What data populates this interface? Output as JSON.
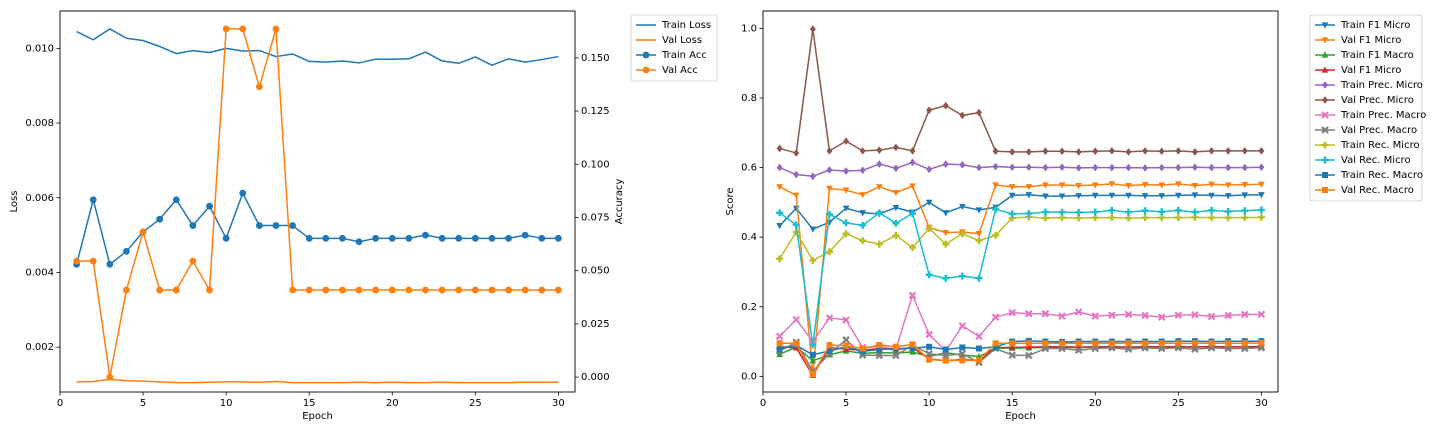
{
  "chart_data": [
    {
      "type": "line",
      "title": "",
      "xlabel": "Epoch",
      "ylabel": "Loss",
      "ylabel_right": "Accuracy",
      "xlim": [
        0,
        31
      ],
      "ylim": [
        0.0008,
        0.011
      ],
      "ylim_right": [
        -0.007,
        0.172
      ],
      "xticks": [
        0,
        5,
        10,
        15,
        20,
        25,
        30
      ],
      "xtick_labels": [
        "0",
        "5",
        "10",
        "15",
        "20",
        "25",
        "30"
      ],
      "yticks": [
        0.002,
        0.004,
        0.006,
        0.008,
        0.01
      ],
      "ytick_labels": [
        "0.002",
        "0.004",
        "0.006",
        "0.008",
        "0.010"
      ],
      "yticks_right": [
        0.0,
        0.025,
        0.05,
        0.075,
        0.1,
        0.125,
        0.15
      ],
      "ytick_labels_right": [
        "0.000",
        "0.025",
        "0.050",
        "0.075",
        "0.100",
        "0.125",
        "0.150"
      ],
      "grid": false,
      "legend_position": "outside-top-right",
      "x": [
        1,
        2,
        3,
        4,
        5,
        6,
        7,
        8,
        9,
        10,
        11,
        12,
        13,
        14,
        15,
        16,
        17,
        18,
        19,
        20,
        21,
        22,
        23,
        24,
        25,
        26,
        27,
        28,
        29,
        30
      ],
      "series": [
        {
          "name": "Train Loss",
          "axis": "left",
          "color": "#1f77b4",
          "marker": "none",
          "values": [
            0.01045,
            0.01023,
            0.01052,
            0.01027,
            0.01021,
            0.01005,
            0.00986,
            0.00994,
            0.00989,
            0.01,
            0.00993,
            0.00994,
            0.00978,
            0.00985,
            0.00965,
            0.00963,
            0.00966,
            0.00961,
            0.00971,
            0.00971,
            0.00972,
            0.0099,
            0.00966,
            0.0096,
            0.00977,
            0.00955,
            0.00972,
            0.00963,
            0.0097,
            0.00978
          ]
        },
        {
          "name": "Val Loss",
          "axis": "left",
          "color": "#ff7f0e",
          "marker": "none",
          "values": [
            0.00107,
            0.00108,
            0.00114,
            0.0011,
            0.00109,
            0.00107,
            0.00105,
            0.00105,
            0.00106,
            0.00107,
            0.00107,
            0.00106,
            0.00108,
            0.00105,
            0.00105,
            0.00105,
            0.00105,
            0.00106,
            0.00105,
            0.00106,
            0.00105,
            0.00105,
            0.00106,
            0.00105,
            0.00105,
            0.00105,
            0.00105,
            0.00106,
            0.00106,
            0.00106
          ]
        },
        {
          "name": "Train Acc",
          "axis": "right",
          "color": "#1f77b4",
          "marker": "circle",
          "values": [
            0.053,
            0.0833,
            0.053,
            0.0591,
            0.0682,
            0.0742,
            0.0833,
            0.0712,
            0.0803,
            0.0652,
            0.0864,
            0.0712,
            0.0712,
            0.0712,
            0.0652,
            0.0652,
            0.0652,
            0.0636,
            0.0652,
            0.0652,
            0.0652,
            0.0667,
            0.0652,
            0.0652,
            0.0652,
            0.0652,
            0.0652,
            0.0667,
            0.0652,
            0.0652
          ]
        },
        {
          "name": "Val Acc",
          "axis": "right",
          "color": "#ff7f0e",
          "marker": "circle",
          "values": [
            0.0545,
            0.0545,
            0.0,
            0.0409,
            0.0682,
            0.0409,
            0.0409,
            0.0545,
            0.0409,
            0.1636,
            0.1636,
            0.1364,
            0.1636,
            0.0409,
            0.0409,
            0.0409,
            0.0409,
            0.0409,
            0.0409,
            0.0409,
            0.0409,
            0.0409,
            0.0409,
            0.0409,
            0.0409,
            0.0409,
            0.0409,
            0.0409,
            0.0409,
            0.0409
          ]
        }
      ]
    },
    {
      "type": "line",
      "title": "",
      "xlabel": "Epoch",
      "ylabel": "Score",
      "xlim": [
        0,
        31
      ],
      "ylim": [
        -0.045,
        1.05
      ],
      "xticks": [
        0,
        5,
        10,
        15,
        20,
        25,
        30
      ],
      "xtick_labels": [
        "0",
        "5",
        "10",
        "15",
        "20",
        "25",
        "30"
      ],
      "yticks": [
        0.0,
        0.2,
        0.4,
        0.6,
        0.8,
        1.0
      ],
      "ytick_labels": [
        "0.0",
        "0.2",
        "0.4",
        "0.6",
        "0.8",
        "1.0"
      ],
      "grid": false,
      "legend_position": "outside-top-right",
      "x": [
        1,
        2,
        3,
        4,
        5,
        6,
        7,
        8,
        9,
        10,
        11,
        12,
        13,
        14,
        15,
        16,
        17,
        18,
        19,
        20,
        21,
        22,
        23,
        24,
        25,
        26,
        27,
        28,
        29,
        30
      ],
      "series": [
        {
          "name": "Train F1 Micro",
          "color": "#1f77b4",
          "marker": "tri-down",
          "values": [
            0.433,
            0.483,
            0.423,
            0.443,
            0.483,
            0.47,
            0.467,
            0.485,
            0.472,
            0.5,
            0.47,
            0.488,
            0.478,
            0.486,
            0.52,
            0.522,
            0.518,
            0.518,
            0.519,
            0.52,
            0.52,
            0.52,
            0.519,
            0.519,
            0.52,
            0.521,
            0.52,
            0.519,
            0.521,
            0.522
          ]
        },
        {
          "name": "Val F1 Micro",
          "color": "#ff7f0e",
          "marker": "tri-down",
          "values": [
            0.545,
            0.52,
            0.005,
            0.54,
            0.535,
            0.522,
            0.545,
            0.528,
            0.547,
            0.428,
            0.413,
            0.415,
            0.41,
            0.55,
            0.545,
            0.545,
            0.55,
            0.55,
            0.548,
            0.55,
            0.553,
            0.548,
            0.551,
            0.55,
            0.553,
            0.548,
            0.552,
            0.55,
            0.551,
            0.552
          ]
        },
        {
          "name": "Train F1 Macro",
          "color": "#2ca02c",
          "marker": "tri-up",
          "values": [
            0.063,
            0.085,
            0.045,
            0.062,
            0.073,
            0.066,
            0.068,
            0.067,
            0.07,
            0.057,
            0.068,
            0.061,
            0.057,
            0.081,
            0.081,
            0.082,
            0.083,
            0.083,
            0.083,
            0.084,
            0.084,
            0.084,
            0.084,
            0.085,
            0.085,
            0.085,
            0.085,
            0.085,
            0.085,
            0.086
          ]
        },
        {
          "name": "Val F1 Micro",
          "color": "#d62728",
          "marker": "tri-up",
          "values": [
            0.085,
            0.082,
            0.003,
            0.083,
            0.078,
            0.075,
            0.08,
            0.077,
            0.083,
            0.05,
            0.045,
            0.048,
            0.046,
            0.083,
            0.083,
            0.084,
            0.085,
            0.085,
            0.084,
            0.085,
            0.085,
            0.084,
            0.085,
            0.085,
            0.085,
            0.084,
            0.085,
            0.085,
            0.085,
            0.085
          ]
        },
        {
          "name": "Train Prec. Micro",
          "color": "#9467bd",
          "marker": "diamond",
          "values": [
            0.6,
            0.58,
            0.575,
            0.593,
            0.59,
            0.592,
            0.61,
            0.598,
            0.615,
            0.595,
            0.61,
            0.608,
            0.6,
            0.603,
            0.601,
            0.601,
            0.6,
            0.601,
            0.599,
            0.6,
            0.6,
            0.6,
            0.599,
            0.6,
            0.6,
            0.601,
            0.6,
            0.6,
            0.6,
            0.601
          ]
        },
        {
          "name": "Val Prec. Micro",
          "color": "#8c564b",
          "marker": "diamond",
          "values": [
            0.655,
            0.642,
            0.998,
            0.648,
            0.676,
            0.648,
            0.65,
            0.658,
            0.648,
            0.765,
            0.778,
            0.75,
            0.758,
            0.647,
            0.645,
            0.645,
            0.647,
            0.647,
            0.645,
            0.647,
            0.648,
            0.645,
            0.648,
            0.647,
            0.648,
            0.645,
            0.648,
            0.648,
            0.648,
            0.648
          ]
        },
        {
          "name": "Train Prec. Macro",
          "color": "#e377c2",
          "marker": "x",
          "values": [
            0.115,
            0.163,
            0.1,
            0.168,
            0.162,
            0.083,
            0.086,
            0.078,
            0.233,
            0.12,
            0.073,
            0.145,
            0.115,
            0.17,
            0.183,
            0.18,
            0.18,
            0.173,
            0.185,
            0.173,
            0.176,
            0.178,
            0.175,
            0.17,
            0.176,
            0.177,
            0.172,
            0.175,
            0.178,
            0.178
          ]
        },
        {
          "name": "Val Prec. Macro",
          "color": "#7f7f7f",
          "marker": "x",
          "values": [
            0.073,
            0.098,
            0.015,
            0.065,
            0.105,
            0.061,
            0.06,
            0.06,
            0.09,
            0.065,
            0.06,
            0.065,
            0.04,
            0.08,
            0.061,
            0.06,
            0.08,
            0.08,
            0.075,
            0.08,
            0.082,
            0.078,
            0.082,
            0.08,
            0.082,
            0.078,
            0.082,
            0.08,
            0.08,
            0.082
          ]
        },
        {
          "name": "Train Rec. Micro",
          "color": "#bcbd22",
          "marker": "plus",
          "values": [
            0.338,
            0.415,
            0.333,
            0.358,
            0.41,
            0.39,
            0.38,
            0.405,
            0.37,
            0.425,
            0.38,
            0.41,
            0.39,
            0.405,
            0.455,
            0.458,
            0.455,
            0.456,
            0.455,
            0.456,
            0.456,
            0.455,
            0.456,
            0.456,
            0.456,
            0.457,
            0.456,
            0.456,
            0.456,
            0.457
          ]
        },
        {
          "name": "Val Rec. Micro",
          "color": "#17becf",
          "marker": "plus",
          "values": [
            0.47,
            0.435,
            0.09,
            0.466,
            0.441,
            0.434,
            0.47,
            0.44,
            0.468,
            0.292,
            0.282,
            0.288,
            0.282,
            0.48,
            0.467,
            0.468,
            0.472,
            0.472,
            0.471,
            0.472,
            0.477,
            0.472,
            0.476,
            0.473,
            0.477,
            0.472,
            0.477,
            0.474,
            0.476,
            0.478
          ]
        },
        {
          "name": "Train Rec. Macro",
          "color": "#1f77b4",
          "marker": "square",
          "values": [
            0.078,
            0.089,
            0.062,
            0.073,
            0.085,
            0.072,
            0.077,
            0.08,
            0.081,
            0.085,
            0.077,
            0.083,
            0.08,
            0.085,
            0.1,
            0.102,
            0.1,
            0.099,
            0.1,
            0.1,
            0.1,
            0.1,
            0.1,
            0.1,
            0.101,
            0.101,
            0.1,
            0.101,
            0.101,
            0.101
          ]
        },
        {
          "name": "Val Rec. Macro",
          "color": "#ff7f0e",
          "marker": "square",
          "values": [
            0.095,
            0.095,
            0.005,
            0.09,
            0.088,
            0.08,
            0.09,
            0.085,
            0.092,
            0.048,
            0.045,
            0.046,
            0.046,
            0.095,
            0.095,
            0.095,
            0.095,
            0.095,
            0.095,
            0.095,
            0.095,
            0.095,
            0.095,
            0.095,
            0.095,
            0.095,
            0.095,
            0.095,
            0.095,
            0.096
          ]
        }
      ]
    }
  ]
}
